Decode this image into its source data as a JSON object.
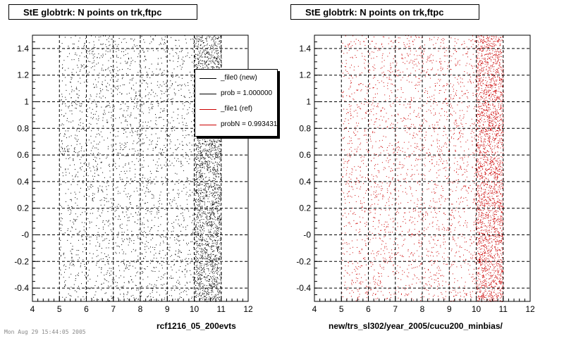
{
  "footer_text": "Mon Aug 29 15:44:05 2005",
  "legend": {
    "entries": [
      {
        "label": "_file0 (new)",
        "color": "#000000"
      },
      {
        "label": "prob = 1.000000",
        "color": "#000000"
      },
      {
        "label": "_file1 (ref)",
        "color": "#cc0000"
      },
      {
        "label": "probN = 0.993431",
        "color": "#cc0000"
      }
    ]
  },
  "chart_data": [
    {
      "type": "scatter",
      "title": "StE globtrk: N points on trk,ftpc",
      "xlabel": "rcf1216_05_200evts",
      "ylabel": "",
      "xlim": [
        4,
        12
      ],
      "ylim": [
        -0.5,
        1.5
      ],
      "x_ticks": [
        "4",
        "5",
        "6",
        "7",
        "8",
        "9",
        "10",
        "11",
        "12"
      ],
      "y_ticks": [
        "-0.4",
        "-0.2",
        "-0",
        "0.2",
        "0.4",
        "0.6",
        "0.8",
        "1",
        "1.2",
        "1.4"
      ],
      "grid": true,
      "legend_position": "top-right",
      "series": [
        {
          "name": "_file0 (new)",
          "color": "#000000"
        }
      ],
      "point_density": [
        {
          "x_range": [
            5,
            10
          ],
          "relative_density": 0.45
        },
        {
          "x_range": [
            10,
            11
          ],
          "relative_density": 1.0
        }
      ]
    },
    {
      "type": "scatter",
      "title": "StE globtrk: N points on trk,ftpc",
      "xlabel": "new/trs_sl302/year_2005/cucu200_minbias/",
      "ylabel": "",
      "xlim": [
        4,
        12
      ],
      "ylim": [
        -0.5,
        1.5
      ],
      "x_ticks": [
        "4",
        "5",
        "6",
        "7",
        "8",
        "9",
        "10",
        "11",
        "12"
      ],
      "y_ticks": [
        "-0.4",
        "-0.2",
        "-0",
        "0.2",
        "0.4",
        "0.6",
        "0.8",
        "1",
        "1.2",
        "1.4"
      ],
      "grid": true,
      "series": [
        {
          "name": "_file1 (ref)",
          "color": "#cc0000"
        }
      ],
      "point_density": [
        {
          "x_range": [
            5,
            10
          ],
          "relative_density": 0.45
        },
        {
          "x_range": [
            10,
            11
          ],
          "relative_density": 1.0
        }
      ]
    }
  ]
}
